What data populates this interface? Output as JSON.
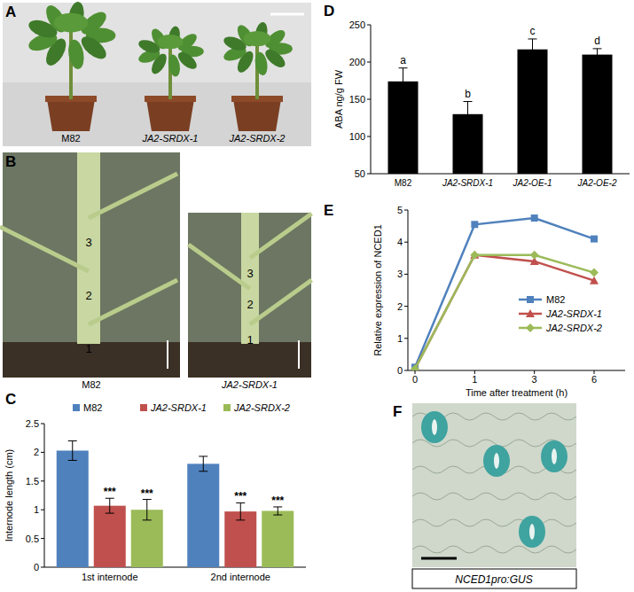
{
  "chart_data": [
    {
      "panel": "C",
      "type": "bar",
      "y_label": "Internode length (cm)",
      "categories": [
        "1st internode",
        "2nd internode"
      ],
      "series": [
        {
          "name": "M82",
          "color": "#4f81bd",
          "values": [
            2.03,
            1.8
          ],
          "errors": [
            0.17,
            0.13
          ]
        },
        {
          "name": "JA2-SRDX-1",
          "color": "#c0504d",
          "values": [
            1.07,
            0.97
          ],
          "errors": [
            0.13,
            0.15
          ],
          "significance": [
            "***",
            "***"
          ]
        },
        {
          "name": "JA2-SRDX-2",
          "color": "#9bbb59",
          "values": [
            1.0,
            0.98
          ],
          "errors": [
            0.18,
            0.07
          ],
          "significance": [
            "***",
            "***"
          ]
        }
      ],
      "ylim": [
        0,
        2.5
      ],
      "yticks": [
        0,
        0.5,
        1,
        1.5,
        2,
        2.5
      ],
      "legend": "top",
      "grid": false
    },
    {
      "panel": "D",
      "type": "bar",
      "y_label": "ABA ng/g FW",
      "categories": [
        "M82",
        "JA2-SRDX-1",
        "JA2-OE-1",
        "JA2-OE-2"
      ],
      "values": [
        174,
        130,
        217,
        210
      ],
      "errors": [
        18,
        17,
        14,
        8
      ],
      "letters": [
        "a",
        "b",
        "c",
        "d"
      ],
      "color": "#000000",
      "ylim": [
        50,
        250
      ],
      "yticks": [
        50,
        100,
        150,
        200,
        250
      ],
      "grid": false
    },
    {
      "panel": "E",
      "type": "line",
      "x_label": "Time after treatment (h)",
      "y_label": "Relative expression of NCED1",
      "categories": [
        "0",
        "1",
        "3",
        "6"
      ],
      "series": [
        {
          "name": "M82",
          "color": "#4f81bd",
          "marker": "square",
          "values": [
            0.1,
            4.55,
            4.75,
            4.1
          ]
        },
        {
          "name": "JA2-SRDX-1",
          "color": "#c0504d",
          "marker": "triangle",
          "values": [
            0.05,
            3.6,
            3.4,
            2.8
          ]
        },
        {
          "name": "JA2-SRDX-2",
          "color": "#9bbb59",
          "marker": "diamond",
          "values": [
            0.05,
            3.6,
            3.6,
            3.05
          ]
        }
      ],
      "ylim": [
        0,
        5
      ],
      "yticks": [
        0,
        1,
        2,
        3,
        4,
        5
      ],
      "legend": "right",
      "grid": false
    }
  ],
  "photos": {
    "A": {
      "panel": "A",
      "labels": [
        "M82",
        "JA2-SRDX-1",
        "JA2-SRDX-2"
      ]
    },
    "B": {
      "panel": "B",
      "labels": [
        "M82",
        "JA2-SRDX-1"
      ],
      "internodes": [
        "1",
        "2",
        "3"
      ]
    },
    "F": {
      "panel": "F",
      "label": "NCED1pro:GUS"
    }
  }
}
